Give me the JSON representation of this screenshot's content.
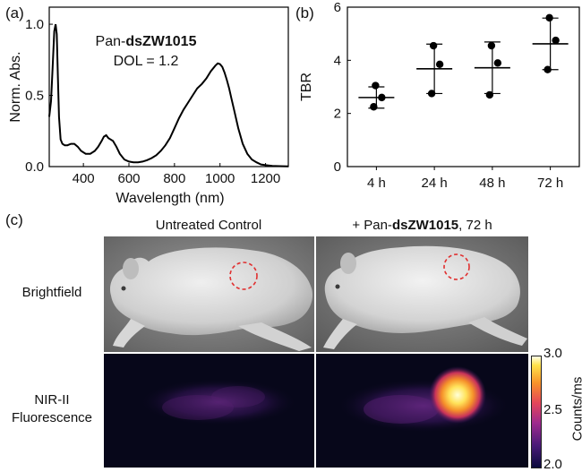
{
  "panels": {
    "a": "(a)",
    "b": "(b)",
    "c": "(c)"
  },
  "chart_data": [
    {
      "type": "line",
      "panel": "(a)",
      "annotation_prefix": "Pan-",
      "annotation_bold": "dsZW1015",
      "annotation_line2": "DOL = 1.2",
      "xlabel": "Wavelength (nm)",
      "ylabel": "Norm. Abs.",
      "xlim": [
        250,
        1300
      ],
      "ylim": [
        0,
        1.12
      ],
      "xticks": [
        400,
        600,
        800,
        1000,
        1200
      ],
      "yticks": [
        0.0,
        0.5,
        1.0
      ],
      "ytick_labels": [
        "0.0",
        "0.5",
        "1.0"
      ],
      "series": [
        {
          "x": [
            250,
            258,
            265,
            272,
            278,
            283,
            288,
            293,
            300,
            308,
            318,
            330,
            345,
            360,
            375,
            390,
            410,
            430,
            450,
            465,
            480,
            490,
            500,
            510,
            520,
            530,
            545,
            560,
            580,
            600,
            620,
            640,
            660,
            680,
            700,
            720,
            740,
            760,
            780,
            800,
            820,
            840,
            860,
            880,
            900,
            920,
            940,
            960,
            980,
            990,
            1000,
            1010,
            1020,
            1030,
            1040,
            1050,
            1060,
            1080,
            1100,
            1120,
            1140,
            1160,
            1180,
            1200,
            1230,
            1260,
            1300
          ],
          "y": [
            0.35,
            0.46,
            0.7,
            0.95,
            1.0,
            0.93,
            0.62,
            0.35,
            0.19,
            0.16,
            0.15,
            0.15,
            0.16,
            0.16,
            0.14,
            0.11,
            0.09,
            0.09,
            0.11,
            0.14,
            0.18,
            0.21,
            0.22,
            0.2,
            0.19,
            0.18,
            0.14,
            0.09,
            0.05,
            0.035,
            0.03,
            0.03,
            0.035,
            0.045,
            0.06,
            0.08,
            0.11,
            0.15,
            0.2,
            0.27,
            0.34,
            0.4,
            0.45,
            0.5,
            0.55,
            0.58,
            0.62,
            0.67,
            0.71,
            0.725,
            0.72,
            0.7,
            0.66,
            0.61,
            0.55,
            0.48,
            0.41,
            0.27,
            0.16,
            0.09,
            0.05,
            0.03,
            0.015,
            0.01,
            0.005,
            0.003,
            0.002
          ]
        }
      ]
    },
    {
      "type": "scatter",
      "panel": "(b)",
      "xlabel": "",
      "ylabel": "TBR",
      "categories": [
        "4 h",
        "24 h",
        "48 h",
        "72 h"
      ],
      "ylim": [
        0,
        6
      ],
      "yticks": [
        0,
        2,
        4,
        6
      ],
      "points": [
        [
          2.25,
          2.6,
          3.05
        ],
        [
          2.75,
          3.85,
          4.55
        ],
        [
          2.7,
          3.9,
          4.55
        ],
        [
          3.65,
          4.75,
          5.6
        ]
      ],
      "mean": [
        2.6,
        3.68,
        3.72,
        4.62
      ],
      "sd": [
        0.4,
        0.93,
        0.97,
        0.97
      ]
    }
  ],
  "imaging": {
    "col_left": "Untreated Control",
    "col_right_prefix": "+ Pan-",
    "col_right_bold": "dsZW1015",
    "col_right_suffix": ", 72 h",
    "row_top": "Brightfield",
    "row_bottom_line1": "NIR-II",
    "row_bottom_line2": "Fluorescence",
    "colorbar": {
      "label": "Counts/ms",
      "ticks": [
        "3.0",
        "2.5",
        "2.0"
      ]
    }
  }
}
